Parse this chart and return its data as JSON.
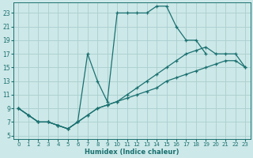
{
  "xlabel": "Humidex (Indice chaleur)",
  "bg_color": "#cde8e8",
  "grid_color": "#aacece",
  "line_color": "#1a7070",
  "xlim": [
    -0.5,
    23.5
  ],
  "ylim": [
    4.5,
    24.5
  ],
  "xticks": [
    0,
    1,
    2,
    3,
    4,
    5,
    6,
    7,
    8,
    9,
    10,
    11,
    12,
    13,
    14,
    15,
    16,
    17,
    18,
    19,
    20,
    21,
    22,
    23
  ],
  "yticks": [
    5,
    7,
    9,
    11,
    13,
    15,
    17,
    19,
    21,
    23
  ],
  "lines": [
    {
      "x": [
        0,
        1,
        2,
        3,
        4,
        5,
        6,
        7,
        8,
        9,
        10,
        11,
        12,
        13,
        14,
        15,
        16,
        17,
        18,
        19
      ],
      "y": [
        9,
        8,
        7,
        7,
        6.5,
        6,
        7,
        17,
        13,
        10,
        23,
        23,
        23,
        23,
        24,
        24,
        21,
        19,
        19,
        17
      ]
    },
    {
      "x": [
        0,
        1,
        2,
        3,
        4,
        5,
        6,
        7,
        8,
        9,
        10,
        11,
        12,
        13,
        14,
        15,
        16,
        17,
        18,
        19,
        20,
        21,
        22,
        23
      ],
      "y": [
        9,
        8,
        7,
        7,
        6.5,
        6,
        7,
        8,
        9,
        9.5,
        10,
        11,
        12,
        13,
        14,
        15,
        16,
        17,
        17.5,
        18,
        17,
        17,
        17,
        15
      ]
    },
    {
      "x": [
        0,
        1,
        2,
        3,
        4,
        5,
        6,
        7,
        8,
        9,
        10,
        11,
        12,
        13,
        14,
        15,
        16,
        17,
        18,
        19,
        20,
        21,
        22,
        23
      ],
      "y": [
        9,
        8,
        7,
        7,
        6.5,
        6,
        7,
        8,
        9,
        9.5,
        10,
        10.5,
        11,
        11.5,
        12,
        13,
        13.5,
        14,
        14.5,
        15,
        15.5,
        16,
        16,
        15
      ]
    }
  ]
}
